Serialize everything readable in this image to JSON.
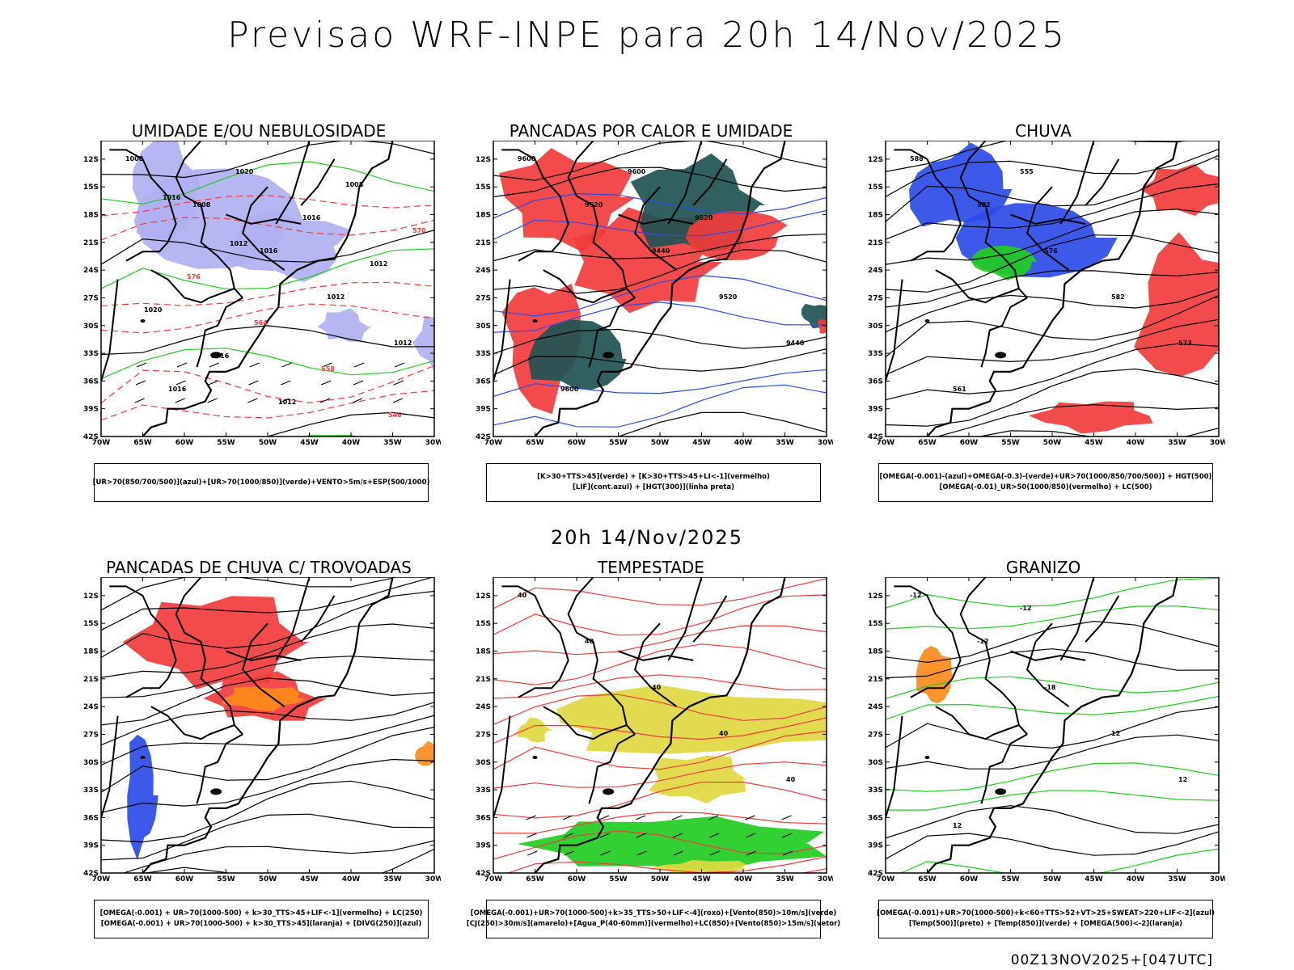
{
  "title": "Previsao WRF-INPE  para 20h 14/Nov/2025",
  "mid_title": "20h 14/Nov/2025",
  "footer": "00Z13NOV2025+[047UTC]",
  "axes": {
    "lat_labels": [
      "12S",
      "15S",
      "18S",
      "21S",
      "24S",
      "27S",
      "30S",
      "33S",
      "36S",
      "39S",
      "42S"
    ],
    "lon_labels": [
      "70W",
      "65W",
      "60W",
      "55W",
      "50W",
      "45W",
      "40W",
      "35W",
      "30W"
    ]
  },
  "colors": {
    "blue": "#2d4be8",
    "green": "#22cc22",
    "red": "#f23c3c",
    "lavender": "#b0b0f2",
    "darkteal": "#1f5252",
    "yellow": "#e0d840",
    "orange": "#ff8a1a"
  },
  "panels": [
    {
      "title": "UMIDADE E/OU NEBULOSIDADE",
      "caption": [
        "[UR>70(850/700/500)](azul)+[UR>70(1000/850)](verde)+VENTO>5m/s+ESP(500/1000)"
      ],
      "labels": [
        "1008",
        "1008",
        "1016",
        "1012",
        "1012",
        "1016",
        "1020",
        "1016",
        "1012",
        "1020",
        "1016",
        "1012",
        "1008",
        "570",
        "576",
        "564",
        "558",
        "546",
        "1016",
        "1012"
      ]
    },
    {
      "title": "PANCADAS POR CALOR E UMIDADE",
      "caption": [
        "[K>30+TTS>45](verde) + [K>30+TTS>45+LI<-1](vermelho)",
        "[LIF](cont.azul) + [HGT(300)](linha preta)"
      ],
      "labels": [
        "9600",
        "9520",
        "9440",
        "9520",
        "9440",
        "9600",
        "9600",
        "9520"
      ]
    },
    {
      "title": "CHUVA",
      "caption": [
        "[OMEGA(-0.001)-(azul)+OMEGA(-0.3)-(verde)+UR>70(1000/850/700/500)] + HGT(500)",
        "[OMEGA(-0.01)_UR>50(1000/850)(vermelho) + LC(500)"
      ],
      "labels": [
        "588",
        "582",
        "576",
        "582",
        "573",
        "561",
        "555"
      ]
    },
    {
      "title": "PANCADAS DE CHUVA C/ TROVOADAS",
      "caption": [
        "[OMEGA(-0.001) + UR>70(1000-500) + k>30_TTS>45+LIF<-1](vermelho) + LC(250)",
        "[OMEGA(-0.001) + UR>70(1000-500) + k>30_TTS>45](laranja) + [DIVG(250)](azul)"
      ],
      "labels": []
    },
    {
      "title": "TEMPESTADE",
      "caption": [
        "[OMEGA(-0.001)+UR>70(1000-500)+k>35_TTS>50+LIF<-4](roxo)+[Vento(850)>10m/s](verde)",
        "[CJ(250)>30m/s](amarelo)+[Agua_P(40-60mm)](vermelho)+LC(850)+[Vento(850)>15m/s](vetor)"
      ],
      "labels": [
        "40",
        "40",
        "40",
        "40",
        "40"
      ]
    },
    {
      "title": "GRANIZO",
      "caption": [
        "[OMEGA(-0.001)+UR>70(1000-500)+k<60+TTS>52+VT>25+SWEAT>220+LIF<-2](azul)",
        "[Temp(500)](preto) + [Temp(850)](verde) + [OMEGA(500)<-2](laranja)"
      ],
      "labels": [
        "-12",
        "-12",
        "-18",
        "12",
        "12",
        "12",
        "-12"
      ]
    }
  ]
}
